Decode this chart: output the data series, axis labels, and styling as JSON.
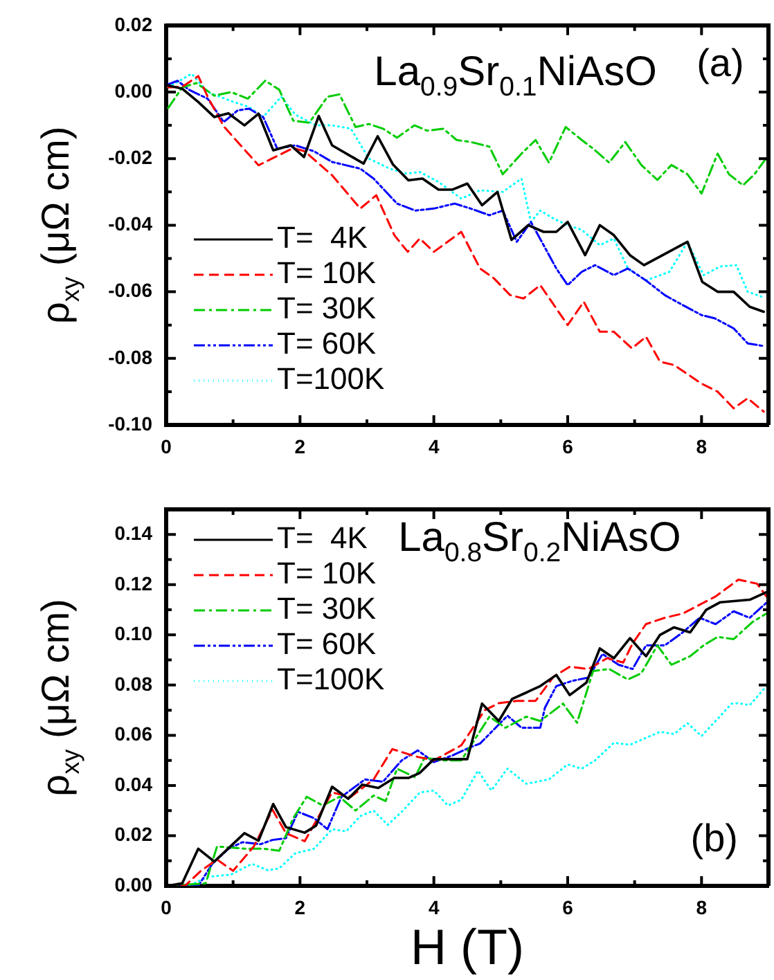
{
  "chart_data": [
    {
      "type": "line",
      "title": "La$_{0.9}$Sr$_{0.1}$NiAsO",
      "ylabel": "ρ$_{xy}$ (μΩ cm)",
      "annotations": [
        "(a)"
      ],
      "legend": "bottom left",
      "grid": false,
      "marker": "none",
      "xlim": [
        0,
        9
      ],
      "xticks": [
        0,
        2,
        4,
        6,
        8
      ],
      "ylim": [
        -0.1,
        0.02
      ],
      "yticks": [
        {
          "value": -0.1,
          "label": "-0.10"
        },
        {
          "value": -0.08,
          "label": "-0.08"
        },
        {
          "value": -0.06,
          "label": "-0.06"
        },
        {
          "value": -0.04,
          "label": "-0.04"
        },
        {
          "value": -0.02,
          "label": "-0.02"
        },
        {
          "value": 0,
          "label": "0.00"
        },
        {
          "value": 0.02,
          "label": "0.02"
        }
      ],
      "series": [
        {
          "name": "T=  4K",
          "color": "#000000",
          "line_style": "solid",
          "x": [
            0.03,
            0.24,
            0.48,
            0.72,
            0.93,
            1.17,
            1.38,
            1.6,
            1.86,
            2.06,
            2.28,
            2.48,
            2.95,
            3.16,
            3.39,
            3.62,
            3.83,
            4.07,
            4.28,
            4.5,
            4.72,
            4.95,
            5.16,
            5.41,
            5.64,
            5.83,
            6.0,
            6.26,
            6.48,
            6.69,
            6.93,
            7.14,
            7.79,
            8.01,
            8.24,
            8.48,
            8.72,
            8.93
          ],
          "values": [
            0.002,
            0.001,
            -0.003,
            -0.0075,
            -0.0064,
            -0.01,
            -0.0065,
            -0.0175,
            -0.016,
            -0.0195,
            -0.0072,
            -0.016,
            -0.0215,
            -0.0133,
            -0.0218,
            -0.0265,
            -0.026,
            -0.0293,
            -0.0293,
            -0.0275,
            -0.034,
            -0.03,
            -0.0444,
            -0.04,
            -0.042,
            -0.042,
            -0.039,
            -0.049,
            -0.04,
            -0.043,
            -0.049,
            -0.052,
            -0.045,
            -0.057,
            -0.06,
            -0.06,
            -0.0645,
            -0.066
          ]
        },
        {
          "name": "T= 10K",
          "color": "#ff0000",
          "line_style": "dashed",
          "x": [
            0.03,
            0.24,
            0.48,
            0.62,
            0.86,
            1.38,
            1.9,
            2.07,
            2.48,
            2.9,
            3.14,
            3.41,
            3.61,
            3.79,
            4.0,
            4.41,
            4.69,
            4.9,
            5.14,
            5.34,
            5.59,
            6.0,
            6.24,
            6.48,
            6.69,
            6.96,
            7.17,
            7.38,
            7.59,
            8.0,
            8.24,
            8.48,
            8.69,
            8.93
          ],
          "values": [
            0.0014,
            0.0016,
            0.0048,
            -0.0014,
            -0.0103,
            -0.022,
            -0.0168,
            -0.0178,
            -0.025,
            -0.035,
            -0.031,
            -0.043,
            -0.048,
            -0.044,
            -0.048,
            -0.042,
            -0.053,
            -0.056,
            -0.061,
            -0.062,
            -0.058,
            -0.07,
            -0.063,
            -0.072,
            -0.072,
            -0.077,
            -0.0735,
            -0.081,
            -0.082,
            -0.0876,
            -0.09,
            -0.095,
            -0.092,
            -0.096
          ]
        },
        {
          "name": "T= 30K",
          "color": "#00cc00",
          "line_style": "dashdot",
          "x": [
            0.03,
            0.24,
            0.45,
            0.72,
            0.97,
            1.22,
            1.48,
            1.69,
            1.9,
            2.14,
            2.41,
            2.59,
            2.83,
            3.03,
            3.24,
            3.45,
            3.71,
            3.9,
            4.14,
            4.34,
            4.55,
            4.83,
            5.03,
            5.31,
            5.52,
            5.72,
            5.97,
            6.21,
            6.38,
            6.62,
            6.86,
            7.1,
            7.34,
            7.55,
            7.79,
            8.0,
            8.24,
            8.41,
            8.62,
            8.79,
            9.0
          ],
          "values": [
            -0.0048,
            0.0014,
            0.0027,
            -0.0011,
            0,
            -0.002,
            0.0034,
            0.0007,
            -0.0086,
            -0.0092,
            -0.0014,
            -0.0007,
            -0.0105,
            -0.0096,
            -0.011,
            -0.0137,
            -0.01,
            -0.0116,
            -0.011,
            -0.0144,
            -0.015,
            -0.0164,
            -0.0247,
            -0.0185,
            -0.0144,
            -0.0212,
            -0.0105,
            -0.0144,
            -0.017,
            -0.0212,
            -0.015,
            -0.0219,
            -0.0264,
            -0.0219,
            -0.0247,
            -0.0305,
            -0.0185,
            -0.0247,
            -0.028,
            -0.0247,
            -0.019
          ]
        },
        {
          "name": "T= 60K",
          "color": "#0000ff",
          "line_style": "dashdotdot",
          "x": [
            0.03,
            0.17,
            0.34,
            0.62,
            0.86,
            1.07,
            1.24,
            1.45,
            1.66,
            1.93,
            2.21,
            2.48,
            2.9,
            3.1,
            3.45,
            3.72,
            4.0,
            4.31,
            4.55,
            4.83,
            5.03,
            5.24,
            5.45,
            5.83,
            6.0,
            6.21,
            6.41,
            6.69,
            6.9,
            7.17,
            7.45,
            7.72,
            8.0,
            8.2,
            8.48,
            8.69,
            8.93
          ],
          "values": [
            0.0023,
            0.0034,
            0.0007,
            -0.002,
            -0.009,
            -0.0055,
            -0.005,
            -0.0075,
            -0.017,
            -0.016,
            -0.0178,
            -0.021,
            -0.023,
            -0.026,
            -0.0335,
            -0.0356,
            -0.035,
            -0.0335,
            -0.035,
            -0.037,
            -0.0356,
            -0.045,
            -0.039,
            -0.053,
            -0.058,
            -0.054,
            -0.052,
            -0.055,
            -0.053,
            -0.0566,
            -0.061,
            -0.064,
            -0.067,
            -0.068,
            -0.071,
            -0.0755,
            -0.0763
          ]
        },
        {
          "name": "T=100K",
          "color": "#00ffff",
          "line_style": "dotted",
          "x": [
            0.03,
            0.38,
            0.62,
            0.97,
            1.24,
            1.45,
            1.72,
            1.93,
            2.24,
            2.48,
            2.76,
            3.03,
            3.34,
            3.59,
            3.79,
            4.07,
            4.41,
            4.69,
            5.03,
            5.31,
            5.45,
            5.59,
            5.79,
            6.0,
            6.21,
            6.48,
            6.69,
            6.9,
            7.17,
            7.52,
            7.79,
            8.03,
            8.28,
            8.52,
            8.69,
            8.93
          ],
          "values": [
            0.0014,
            0.0055,
            0,
            -0.0027,
            -0.0045,
            -0.0075,
            -0.0014,
            -0.0068,
            -0.01,
            -0.01,
            -0.011,
            -0.02,
            -0.023,
            -0.0245,
            -0.024,
            -0.027,
            -0.032,
            -0.0295,
            -0.03,
            -0.026,
            -0.039,
            -0.0356,
            -0.038,
            -0.04,
            -0.0414,
            -0.046,
            -0.044,
            -0.053,
            -0.0566,
            -0.054,
            -0.045,
            -0.055,
            -0.0524,
            -0.052,
            -0.06,
            -0.0617
          ]
        }
      ]
    },
    {
      "type": "line",
      "title": "La$_{0.8}$Sr$_{0.2}$NiAsO",
      "xlabel": "H (T)",
      "ylabel": "ρ$_{xy}$ (μΩ cm)",
      "annotations": [
        "(b)"
      ],
      "legend": "top left",
      "grid": false,
      "marker": "none",
      "xlim": [
        0,
        9
      ],
      "xticks": [
        0,
        2,
        4,
        6,
        8
      ],
      "ylim": [
        0,
        0.15
      ],
      "yticks": [
        {
          "value": 0,
          "label": "0.00"
        },
        {
          "value": 0.02,
          "label": "0.02"
        },
        {
          "value": 0.04,
          "label": "0.04"
        },
        {
          "value": 0.06,
          "label": "0.06"
        },
        {
          "value": 0.08,
          "label": "0.08"
        },
        {
          "value": 0.1,
          "label": "0.10"
        },
        {
          "value": 0.12,
          "label": "0.12"
        },
        {
          "value": 0.14,
          "label": "0.14"
        }
      ],
      "series": [
        {
          "name": "T=  4K",
          "color": "#000000",
          "line_style": "solid",
          "x": [
            0,
            0.24,
            0.48,
            0.72,
            1.17,
            1.38,
            1.6,
            1.79,
            2.07,
            2.24,
            2.48,
            2.72,
            2.93,
            3.17,
            3.41,
            3.62,
            3.79,
            4.0,
            4.5,
            4.72,
            4.97,
            5.17,
            5.38,
            5.59,
            5.83,
            6.03,
            6.28,
            6.48,
            6.69,
            6.93,
            7.17,
            7.38,
            7.59,
            7.83,
            8.07,
            8.28,
            8.72,
            8.97
          ],
          "values": [
            0,
            0.001,
            0.0148,
            0.0097,
            0.021,
            0.018,
            0.0326,
            0.0234,
            0.0212,
            0.024,
            0.0395,
            0.0347,
            0.0403,
            0.039,
            0.043,
            0.043,
            0.045,
            0.0505,
            0.0505,
            0.0726,
            0.0657,
            0.0745,
            0.077,
            0.0796,
            0.084,
            0.076,
            0.081,
            0.0946,
            0.0907,
            0.0987,
            0.0915,
            0.1,
            0.103,
            0.101,
            0.11,
            0.113,
            0.114,
            0.117
          ]
        },
        {
          "name": "T= 10K",
          "color": "#ff0000",
          "line_style": "dashed",
          "x": [
            0,
            0.28,
            0.52,
            0.76,
            1.0,
            1.31,
            1.59,
            1.79,
            2.07,
            2.48,
            2.76,
            3.1,
            3.38,
            3.72,
            4.0,
            4.41,
            4.76,
            4.97,
            5.24,
            5.52,
            5.79,
            6.03,
            6.31,
            6.59,
            6.83,
            6.97,
            7.17,
            7.45,
            7.72,
            7.97,
            8.21,
            8.55,
            8.83,
            8.97
          ],
          "values": [
            0,
            0,
            0.006,
            0.0105,
            0.006,
            0.0157,
            0.0303,
            0.021,
            0.0178,
            0.0372,
            0.0355,
            0.0424,
            0.0545,
            0.0516,
            0.05,
            0.056,
            0.07,
            0.0728,
            0.0737,
            0.0737,
            0.0834,
            0.0873,
            0.0864,
            0.0907,
            0.089,
            0.0966,
            0.1043,
            0.1068,
            0.1085,
            0.112,
            0.1153,
            0.122,
            0.1204,
            0.1153
          ]
        },
        {
          "name": "T= 30K",
          "color": "#00cc00",
          "line_style": "dashdot",
          "x": [
            0,
            0.59,
            0.76,
            1.17,
            1.45,
            1.69,
            1.9,
            2.1,
            2.34,
            2.59,
            2.83,
            3.1,
            3.28,
            3.45,
            3.72,
            3.86,
            4.14,
            4.41,
            4.83,
            5.07,
            5.38,
            5.59,
            5.93,
            6.14,
            6.38,
            6.62,
            6.9,
            7.1,
            7.34,
            7.55,
            7.83,
            8.03,
            8.24,
            8.48,
            8.76,
            8.97
          ],
          "values": [
            0,
            0.001,
            0.0157,
            0.0148,
            0.0148,
            0.014,
            0.027,
            0.0355,
            0.032,
            0.0355,
            0.03,
            0.036,
            0.0338,
            0.0467,
            0.0433,
            0.051,
            0.05,
            0.05,
            0.0674,
            0.063,
            0.0674,
            0.0657,
            0.0726,
            0.065,
            0.0856,
            0.0864,
            0.0822,
            0.0847,
            0.0958,
            0.0881,
            0.0915,
            0.0958,
            0.0992,
            0.0983,
            0.1051,
            0.1085
          ]
        },
        {
          "name": "T= 60K",
          "color": "#0000ff",
          "line_style": "dashdotdot",
          "x": [
            0,
            0.48,
            0.69,
            0.93,
            1.14,
            1.41,
            1.59,
            1.79,
            1.97,
            2.21,
            2.41,
            2.62,
            2.97,
            3.24,
            3.52,
            3.76,
            4.0,
            4.28,
            4.55,
            4.69,
            5.1,
            5.31,
            5.59,
            5.66,
            5.83,
            6.07,
            6.31,
            6.52,
            6.76,
            6.97,
            7.17,
            7.45,
            7.72,
            7.97,
            8.21,
            8.48,
            8.72,
            8.97
          ],
          "values": [
            0,
            0,
            0.0088,
            0.0148,
            0.0174,
            0.0166,
            0.0183,
            0.019,
            0.0295,
            0.027,
            0.0226,
            0.0355,
            0.0424,
            0.0415,
            0.05,
            0.054,
            0.0493,
            0.052,
            0.0553,
            0.0567,
            0.0678,
            0.063,
            0.063,
            0.071,
            0.0796,
            0.0817,
            0.083,
            0.0924,
            0.0881,
            0.0864,
            0.0958,
            0.0958,
            0.101,
            0.1068,
            0.1043,
            0.1094,
            0.1068,
            0.1128
          ]
        },
        {
          "name": "T=100K",
          "color": "#00ffff",
          "line_style": "dotted",
          "x": [
            0,
            0.34,
            0.62,
            0.97,
            1.28,
            1.52,
            1.69,
            1.93,
            2.21,
            2.48,
            2.69,
            2.9,
            3.1,
            3.31,
            3.52,
            3.79,
            4.0,
            4.21,
            4.41,
            4.66,
            4.86,
            5.1,
            5.38,
            5.72,
            6.0,
            6.21,
            6.41,
            6.69,
            6.93,
            7.38,
            7.59,
            7.79,
            8.0,
            8.21,
            8.45,
            8.55,
            8.72,
            8.97
          ],
          "values": [
            0,
            0,
            0.0036,
            0.0045,
            0.0088,
            0.0062,
            0.007,
            0.013,
            0.0148,
            0.0226,
            0.0217,
            0.0278,
            0.03,
            0.0243,
            0.0295,
            0.0372,
            0.038,
            0.032,
            0.0343,
            0.0459,
            0.038,
            0.0467,
            0.0407,
            0.0424,
            0.0484,
            0.0467,
            0.05,
            0.057,
            0.0562,
            0.0614,
            0.0605,
            0.0648,
            0.0597,
            0.0657,
            0.0726,
            0.0728,
            0.072,
            0.0796
          ]
        }
      ]
    }
  ]
}
